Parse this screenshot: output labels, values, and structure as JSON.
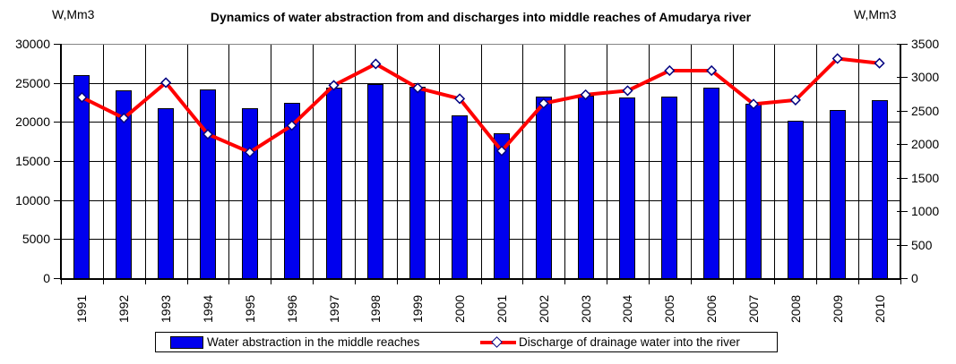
{
  "title": "Dynamics of water abstraction from and discharges into middle reaches of Amudarya river",
  "left_axis": {
    "label": "W,Mm3",
    "ticks": [
      "30000",
      "25000",
      "20000",
      "15000",
      "10000",
      "5000",
      "0"
    ]
  },
  "right_axis": {
    "label": "W,Mm3",
    "ticks": [
      "3500",
      "3000",
      "2500",
      "2000",
      "1500",
      "1000",
      "500",
      "0"
    ]
  },
  "legend": {
    "bar_label": "Water abstraction in the middle reaches",
    "line_label": "Discharge of drainage water into the river"
  },
  "colors": {
    "bar_fill": "#0000EE",
    "bar_border": "#000000",
    "line": "#FF0000",
    "marker_fill": "#FFFFFF",
    "marker_border": "#000080",
    "gridline": "#000000",
    "plot_top_border": "#848484"
  },
  "chart_data": {
    "type": "bar",
    "title": "Dynamics of water abstraction from and discharges into middle reaches of Amudarya river",
    "categories": [
      "1991",
      "1992",
      "1993",
      "1994",
      "1995",
      "1996",
      "1997",
      "1998",
      "1999",
      "2000",
      "2001",
      "2002",
      "2003",
      "2004",
      "2005",
      "2006",
      "2007",
      "2008",
      "2009",
      "2010"
    ],
    "series": [
      {
        "name": "Water abstraction in the middle reaches",
        "type": "bar",
        "axis": "left",
        "values": [
          26000,
          24100,
          21700,
          24200,
          21800,
          22400,
          24400,
          24900,
          24500,
          20800,
          18600,
          23200,
          23400,
          23100,
          23200,
          24400,
          22300,
          20100,
          21500,
          22800
        ]
      },
      {
        "name": "Discharge of drainage water into the river",
        "type": "line",
        "axis": "right",
        "marker": "diamond",
        "values": [
          2700,
          2390,
          2920,
          2150,
          1880,
          2280,
          2880,
          3200,
          2840,
          2680,
          1900,
          2610,
          2740,
          2800,
          3100,
          3100,
          2600,
          2660,
          3280,
          3210
        ]
      }
    ],
    "left_ylabel": "W,Mm3",
    "right_ylabel": "W,Mm3",
    "left_ylim": [
      0,
      30000
    ],
    "left_step": 5000,
    "right_ylim": [
      0,
      3500
    ],
    "right_step": 500,
    "grid": true,
    "legend_position": "bottom"
  }
}
